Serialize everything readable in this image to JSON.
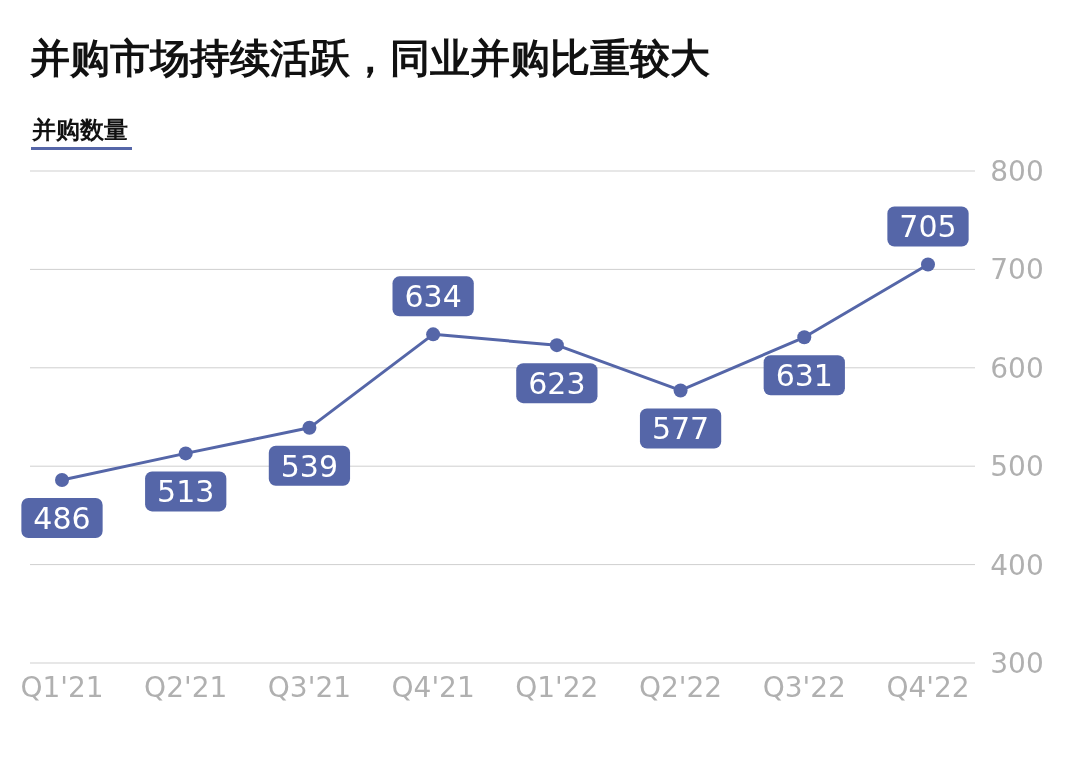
{
  "chart_data": {
    "type": "line",
    "title": "并购市场持续活跃，同业并购比重较大",
    "subtitle": "并购数量",
    "categories": [
      "Q1'21",
      "Q2'21",
      "Q3'21",
      "Q4'21",
      "Q1'22",
      "Q2'22",
      "Q3'22",
      "Q4'22"
    ],
    "series": [
      {
        "color": "#5566a8",
        "values": [
          486,
          513,
          539,
          634,
          623,
          577,
          631,
          705
        ]
      }
    ],
    "ylim": [
      300,
      800
    ],
    "yticks": [
      300,
      400,
      500,
      600,
      700,
      800
    ],
    "grid": "y",
    "marker": "circle",
    "line_style": "solid",
    "data_labels": true
  }
}
